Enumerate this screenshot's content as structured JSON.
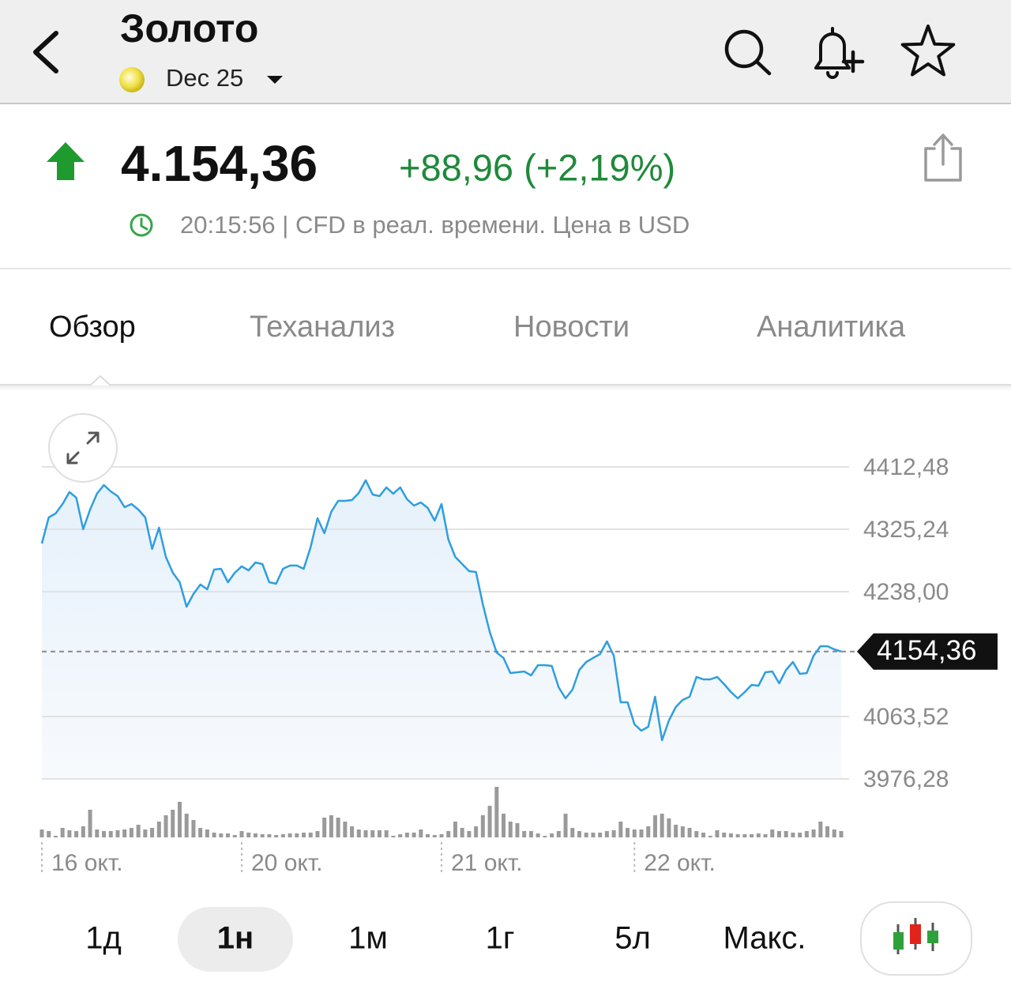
{
  "header": {
    "title": "Золото",
    "contract": "Dec 25"
  },
  "quote": {
    "price": "4.154,36",
    "change": "+88,96 (+2,19%)",
    "meta": "20:15:56 | CFD в реал. времени. Цена в USD"
  },
  "tabs": [
    "Обзор",
    "Теханализ",
    "Новости",
    "Аналитика"
  ],
  "selected_tab_index": 0,
  "chart_data": {
    "type": "line",
    "color": "#2f9ee0",
    "grid": true,
    "categories": [
      "16 окт.",
      null,
      null,
      null,
      null,
      null,
      null,
      null,
      null,
      null,
      null,
      null,
      null,
      null,
      null,
      null,
      null,
      null,
      null,
      null,
      null,
      null,
      null,
      null,
      null,
      null,
      null,
      null,
      null,
      "20 окт.",
      null,
      null,
      null,
      null,
      null,
      null,
      null,
      null,
      null,
      null,
      null,
      null,
      null,
      null,
      null,
      null,
      null,
      null,
      null,
      null,
      null,
      null,
      null,
      null,
      null,
      null,
      null,
      null,
      "21 окт.",
      null,
      null,
      null,
      null,
      null,
      null,
      null,
      null,
      null,
      null,
      null,
      null,
      null,
      null,
      null,
      null,
      null,
      null,
      null,
      null,
      null,
      null,
      null,
      null,
      null,
      null,
      null,
      "22 окт.",
      null,
      null,
      null,
      null,
      null,
      null,
      null,
      null,
      null,
      null,
      null,
      null,
      null,
      null,
      null,
      null,
      null,
      null,
      null,
      null,
      null,
      null,
      null,
      null,
      null,
      null,
      null,
      null,
      null,
      null
    ],
    "values": [
      4305.4,
      4341.8,
      4347.3,
      4360.6,
      4377.2,
      4369.4,
      4325.3,
      4352.9,
      4375.0,
      4387.1,
      4378.3,
      4371.6,
      4356.2,
      4360.6,
      4352.9,
      4341.8,
      4297.7,
      4327.5,
      4286.6,
      4264.5,
      4251.3,
      4217.0,
      4234.7,
      4248.0,
      4241.3,
      4268.9,
      4270.0,
      4251.3,
      4264.5,
      4273.4,
      4267.8,
      4278.9,
      4276.7,
      4251.3,
      4249.1,
      4270.0,
      4274.5,
      4274.5,
      4270.0,
      4299.9,
      4340.7,
      4319.7,
      4349.6,
      4365.0,
      4365.0,
      4366.1,
      4376.1,
      4393.7,
      4373.8,
      4371.6,
      4383.8,
      4375.0,
      4383.8,
      4367.2,
      4358.4,
      4362.8,
      4355.1,
      4337.4,
      4360.6,
      4310.9,
      4286.6,
      4276.7,
      4266.7,
      4265.6,
      4220.4,
      4181.7,
      4153.0,
      4145.3,
      4124.3,
      4125.4,
      4126.5,
      4121.0,
      4135.3,
      4135.3,
      4134.2,
      4104.4,
      4088.9,
      4101.1,
      4128.7,
      4139.7,
      4145.3,
      4150.8,
      4168.5,
      4148.6,
      4083.4,
      4083.4,
      4052.5,
      4043.7,
      4049.2,
      4091.1,
      4030.4,
      4058.0,
      4076.8,
      4086.7,
      4091.1,
      4118.8,
      4115.4,
      4115.4,
      4118.8,
      4108.8,
      4097.8,
      4088.9,
      4097.8,
      4107.7,
      4106.6,
      4125.4,
      4126.5,
      4109.9,
      4128.7,
      4139.7,
      4123.2,
      4124.3,
      4148.6,
      4161.8,
      4161.8,
      4157.4,
      4154.36
    ],
    "volume": [
      10,
      8,
      2,
      12,
      9,
      8,
      14,
      35,
      10,
      8,
      8,
      9,
      10,
      12,
      16,
      10,
      12,
      20,
      28,
      35,
      45,
      30,
      22,
      12,
      10,
      6,
      5,
      5,
      3,
      8,
      6,
      5,
      4,
      4,
      3,
      4,
      5,
      5,
      6,
      6,
      8,
      25,
      28,
      25,
      20,
      14,
      10,
      9,
      9,
      9,
      9,
      2,
      4,
      6,
      6,
      10,
      4,
      3,
      4,
      8,
      20,
      12,
      8,
      14,
      28,
      40,
      64,
      30,
      20,
      18,
      8,
      8,
      5,
      2,
      5,
      8,
      30,
      12,
      8,
      6,
      6,
      6,
      8,
      9,
      20,
      12,
      10,
      10,
      14,
      28,
      30,
      24,
      16,
      14,
      12,
      8,
      6,
      2,
      9,
      6,
      5,
      4,
      4,
      4,
      5,
      4,
      10,
      8,
      8,
      6,
      6,
      8,
      10,
      20,
      14,
      10,
      8
    ],
    "ylim": [
      3976.28,
      4412.48
    ],
    "yticks": [
      {
        "value": 4412.48,
        "label": "4412,48"
      },
      {
        "value": 4325.24,
        "label": "4325,24"
      },
      {
        "value": 4238.0,
        "label": "4238,00"
      },
      {
        "value": 4063.52,
        "label": "4063,52"
      },
      {
        "value": 3976.28,
        "label": "3976,28"
      }
    ],
    "current_price": {
      "value": 4154.36,
      "label": "4154,36"
    }
  },
  "periods": [
    "1д",
    "1н",
    "1м",
    "1г",
    "5л",
    "Макс."
  ],
  "selected_period_index": 1
}
